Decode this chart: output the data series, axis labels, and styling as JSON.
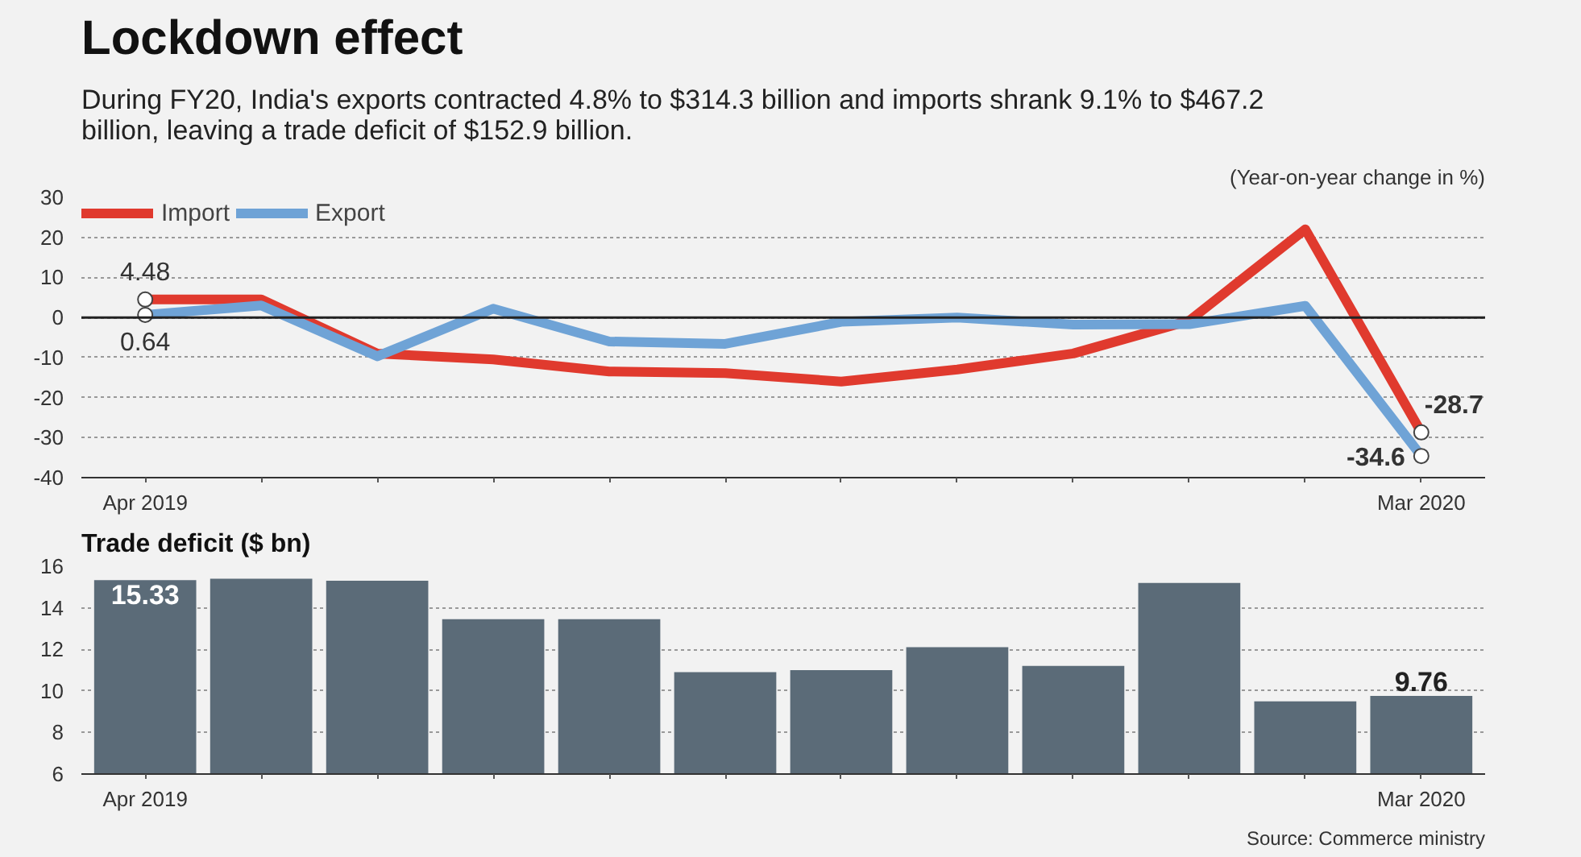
{
  "chart_data": [
    {
      "type": "line",
      "title": "Lockdown effect",
      "subtitle": "During FY20, India's exports contracted 4.8% to $314.3 billion and imports shrank 9.1% to $467.2 billion, leaving a trade deficit of $152.9 billion.",
      "ylabel": "(Year-on-year change in %)",
      "categories": [
        "Apr 2019",
        null,
        null,
        null,
        null,
        null,
        null,
        null,
        null,
        null,
        null,
        "Mar 2020"
      ],
      "series": [
        {
          "name": "Import",
          "color": "#e03a2e",
          "values": [
            4.48,
            4.5,
            -9,
            -10.5,
            -13.5,
            -13.9,
            -16,
            -13,
            -9,
            -0.8,
            22,
            -28.7
          ],
          "value_labels": [
            "4.48",
            null,
            null,
            null,
            null,
            null,
            null,
            null,
            null,
            null,
            null,
            "-28.7"
          ]
        },
        {
          "name": "Export",
          "color": "#6fa3d6",
          "values": [
            0.64,
            3,
            -9.7,
            2.2,
            -6,
            -6.6,
            -1.1,
            0,
            -1.8,
            -1.7,
            2.9,
            -34.6
          ],
          "value_labels": [
            "0.64",
            null,
            null,
            null,
            null,
            null,
            null,
            null,
            null,
            null,
            null,
            "-34.6"
          ]
        }
      ],
      "ylim": [
        -40,
        30
      ],
      "yticks": [
        -40,
        -30,
        -20,
        -10,
        0,
        10,
        20,
        30
      ],
      "grid": "y",
      "legend": "top left",
      "ref_lines": [
        {
          "axis": "y",
          "value": 0,
          "color": "#222222"
        }
      ]
    },
    {
      "type": "bar",
      "title": "Trade deficit ($ bn)",
      "categories": [
        "Apr 2019",
        null,
        null,
        null,
        null,
        null,
        null,
        null,
        null,
        null,
        null,
        "Mar 2020"
      ],
      "values": [
        15.33,
        15.4,
        15.3,
        13.45,
        13.45,
        10.9,
        11.0,
        12.1,
        11.2,
        15.2,
        9.5,
        9.76
      ],
      "color": "#5b6b78",
      "value_labels": [
        "15.33",
        null,
        null,
        null,
        null,
        null,
        null,
        null,
        null,
        null,
        null,
        "9.76"
      ],
      "ylim": [
        6,
        16
      ],
      "yticks": [
        6,
        8,
        10,
        12,
        14,
        16
      ],
      "grid": "y",
      "annotations": [
        "Source: Commerce ministry"
      ]
    }
  ]
}
